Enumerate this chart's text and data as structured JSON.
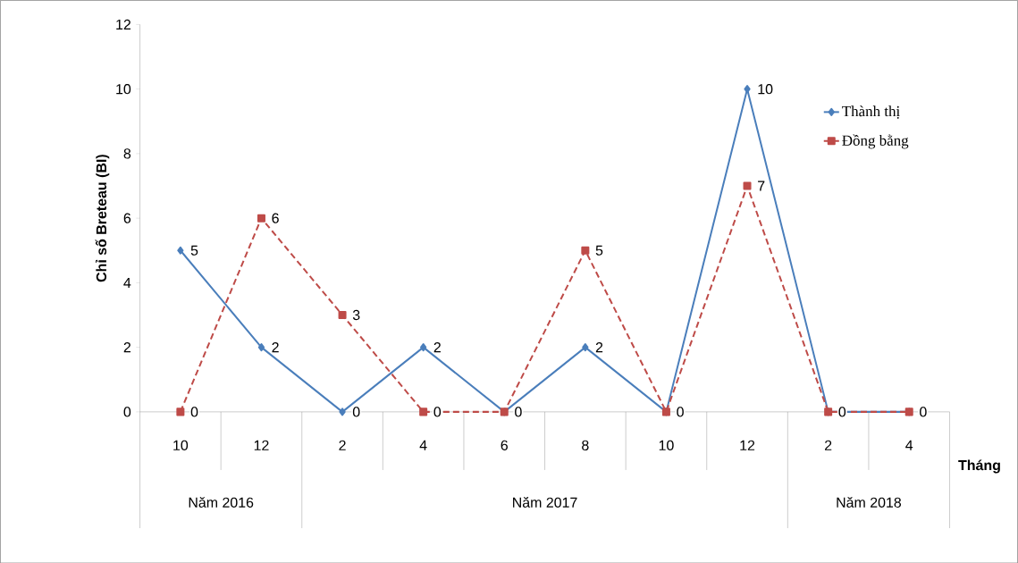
{
  "chart_data": {
    "type": "line",
    "categories": [
      "10",
      "12",
      "2",
      "4",
      "6",
      "8",
      "10",
      "12",
      "2",
      "4"
    ],
    "series": [
      {
        "name": "Thành thị",
        "color": "#4a7ebb",
        "marker": "diamond",
        "line_style": "solid",
        "values": [
          5,
          2,
          0,
          2,
          0,
          2,
          0,
          10,
          0,
          0
        ],
        "value_labels": [
          "5",
          "2",
          "0",
          "2",
          null,
          "2",
          null,
          "10",
          null,
          null
        ]
      },
      {
        "name": "Đồng bằng",
        "color": "#be4b48",
        "marker": "square",
        "line_style": "dashed",
        "values": [
          0,
          6,
          3,
          0,
          0,
          5,
          0,
          7,
          0,
          0
        ],
        "value_labels": [
          "0",
          "6",
          "3",
          "0",
          "0",
          "5",
          "0",
          "7",
          "0",
          "0"
        ]
      }
    ],
    "ylabel": "Chỉ số Breteau (BI)",
    "xlabel": "Tháng",
    "ylim": [
      0,
      12
    ],
    "yticks": [
      0,
      2,
      4,
      6,
      8,
      10,
      12
    ],
    "legend": "right",
    "annotations": [
      "Năm 2016",
      "Năm 2017",
      "Năm 2018"
    ]
  }
}
